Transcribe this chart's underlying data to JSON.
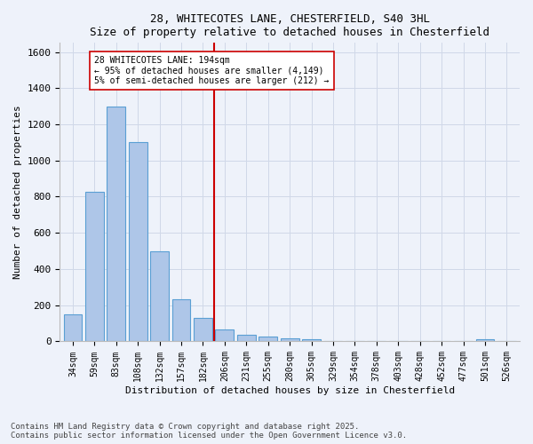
{
  "title": "28, WHITECOTES LANE, CHESTERFIELD, S40 3HL",
  "subtitle": "Size of property relative to detached houses in Chesterfield",
  "xlabel": "Distribution of detached houses by size in Chesterfield",
  "ylabel": "Number of detached properties",
  "categories": [
    "34sqm",
    "59sqm",
    "83sqm",
    "108sqm",
    "132sqm",
    "157sqm",
    "182sqm",
    "206sqm",
    "231sqm",
    "255sqm",
    "280sqm",
    "305sqm",
    "329sqm",
    "354sqm",
    "378sqm",
    "403sqm",
    "428sqm",
    "452sqm",
    "477sqm",
    "501sqm",
    "526sqm"
  ],
  "values": [
    150,
    825,
    1300,
    1100,
    500,
    235,
    130,
    65,
    35,
    25,
    15,
    10,
    0,
    0,
    0,
    0,
    0,
    0,
    0,
    10,
    0
  ],
  "bar_color": "#aec6e8",
  "bar_edge_color": "#5a9fd4",
  "vline_color": "#cc0000",
  "annotation_text": "28 WHITECOTES LANE: 194sqm\n← 95% of detached houses are smaller (4,149)\n5% of semi-detached houses are larger (212) →",
  "ylim": [
    0,
    1650
  ],
  "yticks": [
    0,
    200,
    400,
    600,
    800,
    1000,
    1200,
    1400,
    1600
  ],
  "grid_color": "#d0d8e8",
  "background_color": "#eef2fa",
  "footer": "Contains HM Land Registry data © Crown copyright and database right 2025.\nContains public sector information licensed under the Open Government Licence v3.0."
}
